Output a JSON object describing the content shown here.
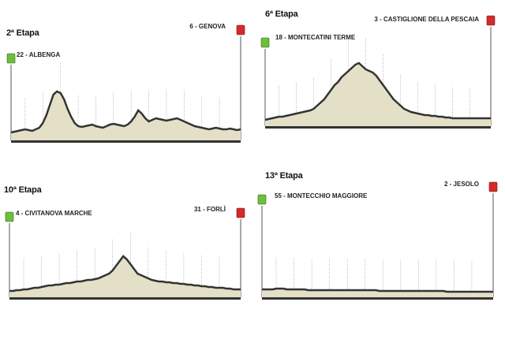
{
  "colors": {
    "start_marker": "#6cbf3a",
    "finish_marker": "#d42a2a",
    "profile_fill": "#e4e0c8",
    "profile_stroke": "#333333",
    "climb_marker": "#4a5a8a"
  },
  "stages": [
    {
      "title": "2ª Etapa",
      "start": "22 - ALBENGA",
      "finish": "6 - GENOVA",
      "profile": [
        10,
        11,
        12,
        13,
        14,
        13,
        12,
        14,
        16,
        22,
        32,
        45,
        58,
        62,
        60,
        52,
        40,
        30,
        22,
        18,
        17,
        18,
        19,
        20,
        18,
        17,
        16,
        18,
        20,
        21,
        20,
        19,
        18,
        20,
        24,
        30,
        38,
        34,
        28,
        24,
        26,
        28,
        27,
        26,
        25,
        26,
        27,
        28,
        26,
        24,
        22,
        20,
        18,
        17,
        16,
        15,
        14,
        15,
        16,
        15,
        14,
        14,
        15,
        14,
        13,
        14
      ]
    },
    {
      "title": "6ª Etapa",
      "start": "18 - MONTECATINI TERME",
      "finish": "3 - CASTIGLIONE DELLA PESCAIA",
      "profile": [
        8,
        9,
        10,
        11,
        12,
        12,
        13,
        14,
        15,
        16,
        17,
        18,
        19,
        20,
        22,
        26,
        30,
        34,
        40,
        46,
        52,
        56,
        62,
        66,
        70,
        74,
        78,
        80,
        76,
        72,
        70,
        68,
        64,
        58,
        52,
        46,
        40,
        34,
        30,
        26,
        22,
        20,
        18,
        17,
        16,
        15,
        14,
        14,
        13,
        13,
        12,
        12,
        11,
        11,
        10,
        10,
        10,
        10,
        10,
        10,
        10,
        10,
        10,
        10,
        10,
        10
      ]
    },
    {
      "title": "10ª Etapa",
      "start": "4 - CIVITANOVA MARCHE",
      "finish": "31 - FORLÌ",
      "profile": [
        8,
        8,
        9,
        9,
        10,
        10,
        11,
        12,
        12,
        13,
        14,
        15,
        15,
        16,
        16,
        17,
        18,
        18,
        19,
        20,
        20,
        21,
        22,
        22,
        23,
        24,
        26,
        28,
        30,
        34,
        40,
        46,
        52,
        48,
        42,
        36,
        30,
        28,
        26,
        24,
        22,
        21,
        20,
        20,
        19,
        19,
        18,
        18,
        17,
        17,
        16,
        16,
        15,
        15,
        14,
        14,
        13,
        13,
        12,
        12,
        12,
        11,
        11,
        10,
        10,
        10
      ]
    },
    {
      "title": "13ª Etapa",
      "start": "55 - MONTECCHIO MAGGIORE",
      "finish": "2 - JESOLO",
      "profile": [
        10,
        10,
        10,
        10,
        11,
        11,
        11,
        10,
        10,
        10,
        10,
        10,
        10,
        9,
        9,
        9,
        9,
        9,
        9,
        9,
        9,
        9,
        9,
        9,
        9,
        9,
        9,
        9,
        9,
        9,
        9,
        9,
        9,
        8,
        8,
        8,
        8,
        8,
        8,
        8,
        8,
        8,
        8,
        8,
        8,
        8,
        8,
        8,
        8,
        8,
        8,
        8,
        7,
        7,
        7,
        7,
        7,
        7,
        7,
        7,
        7,
        7,
        7,
        7,
        7,
        7
      ]
    }
  ]
}
